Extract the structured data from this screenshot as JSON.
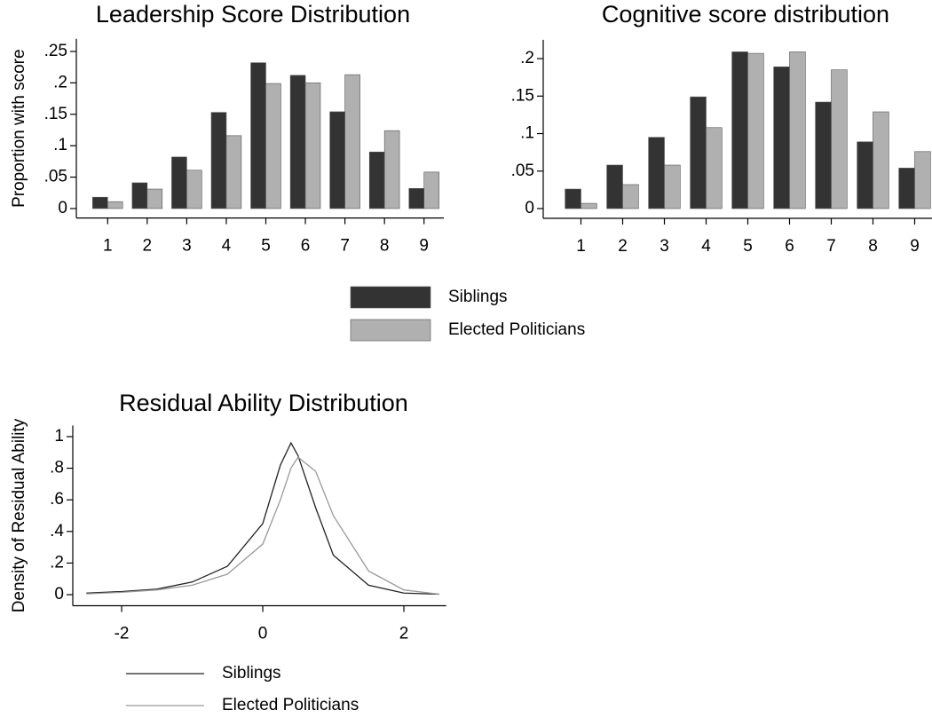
{
  "chart_data": [
    {
      "type": "bar",
      "title": "Leadership Score Distribution",
      "y_label": "Proportion with score",
      "categories": [
        "1",
        "2",
        "3",
        "4",
        "5",
        "6",
        "7",
        "8",
        "9"
      ],
      "series": [
        {
          "name": "Siblings",
          "color": "#333333",
          "values": [
            0.018,
            0.041,
            0.082,
            0.153,
            0.232,
            0.212,
            0.154,
            0.09,
            0.032
          ]
        },
        {
          "name": "Elected Politicians",
          "color": "#b0b0b0",
          "values": [
            0.011,
            0.031,
            0.061,
            0.116,
            0.199,
            0.2,
            0.213,
            0.124,
            0.058
          ]
        }
      ],
      "ylim": [
        -0.015,
        0.27
      ],
      "yticks": [
        0,
        {
          "value": 0.05,
          "label": ".05"
        },
        {
          "value": 0.1,
          "label": ".1"
        },
        {
          "value": 0.15,
          "label": ".15"
        },
        {
          "value": 0.2,
          "label": ".2"
        },
        {
          "value": 0.25,
          "label": ".25"
        }
      ]
    },
    {
      "type": "bar",
      "title": "Cognitive score distribution",
      "categories": [
        "1",
        "2",
        "3",
        "4",
        "5",
        "6",
        "7",
        "8",
        "9"
      ],
      "series": [
        {
          "name": "Siblings",
          "color": "#333333",
          "values": [
            0.026,
            0.058,
            0.095,
            0.149,
            0.209,
            0.189,
            0.142,
            0.089,
            0.054
          ]
        },
        {
          "name": "Elected Politicians",
          "color": "#b0b0b0",
          "values": [
            0.007,
            0.032,
            0.058,
            0.108,
            0.207,
            0.209,
            0.185,
            0.129,
            0.076
          ]
        }
      ],
      "ylim": [
        -0.013,
        0.225
      ],
      "yticks": [
        0,
        {
          "value": 0.05,
          "label": ".05"
        },
        {
          "value": 0.1,
          "label": ".1"
        },
        {
          "value": 0.15,
          "label": ".15"
        },
        {
          "value": 0.2,
          "label": ".2"
        }
      ]
    },
    {
      "type": "line",
      "title": "Residual Ability Distribution",
      "y_label": "Density of Residual Ability",
      "x": [
        -2.5,
        -2,
        -1.5,
        -1,
        -0.5,
        0,
        0.25,
        0.4,
        0.5,
        0.75,
        1,
        1.5,
        2,
        2.5
      ],
      "series": [
        {
          "name": "Siblings",
          "color": "#222222",
          "values": [
            0.01,
            0.02,
            0.035,
            0.08,
            0.18,
            0.45,
            0.82,
            0.96,
            0.88,
            0.55,
            0.25,
            0.06,
            0.01,
            0.003
          ]
        },
        {
          "name": "Elected Politicians",
          "color": "#999999",
          "values": [
            0.005,
            0.015,
            0.03,
            0.06,
            0.13,
            0.32,
            0.6,
            0.8,
            0.87,
            0.78,
            0.5,
            0.15,
            0.03,
            0.003
          ]
        }
      ],
      "xlim": [
        -2.7,
        2.6
      ],
      "xticks": [
        -2,
        0,
        2
      ],
      "ylim": [
        -0.07,
        1.07
      ],
      "yticks": [
        0,
        {
          "value": 0.2,
          "label": ".2"
        },
        {
          "value": 0.4,
          "label": ".4"
        },
        {
          "value": 0.6,
          "label": ".6"
        },
        {
          "value": 0.8,
          "label": ".8"
        },
        1
      ]
    }
  ]
}
